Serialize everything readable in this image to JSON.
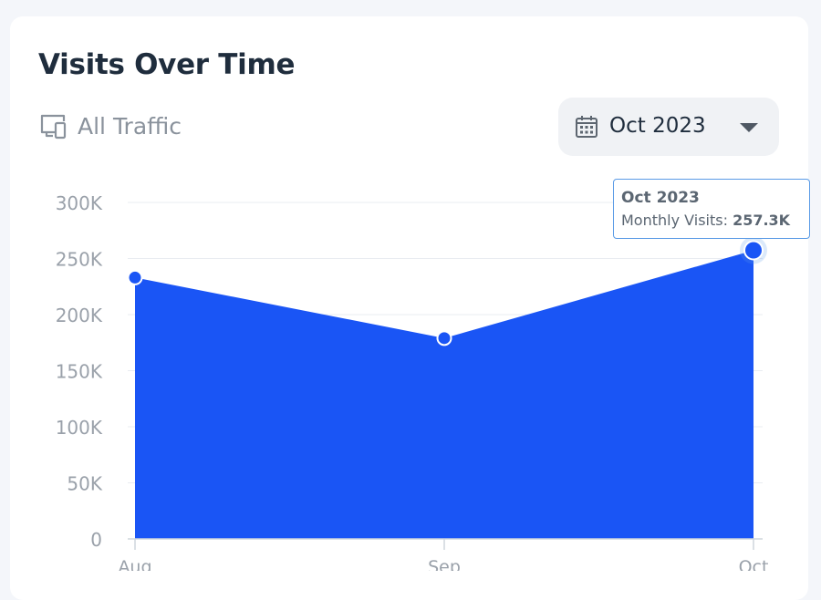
{
  "card": {
    "title": "Visits Over Time",
    "traffic_filter": {
      "label": "All Traffic",
      "icon": "devices-icon"
    },
    "date_select": {
      "value": "Oct 2023",
      "icon": "calendar-icon",
      "caret_icon": "caret-down-icon"
    }
  },
  "tooltip": {
    "title": "Oct 2023",
    "label": "Monthly Visits:",
    "value": "257.3K"
  },
  "colors": {
    "area": "#1a55f5",
    "grid": "#e9ecf1",
    "axis_text": "#9aa1aa",
    "tooltip_border": "#5a9be6"
  },
  "chart_data": {
    "type": "area",
    "categories": [
      "Aug",
      "Sep",
      "Oct"
    ],
    "series": [
      {
        "values": [
          233000,
          179000,
          257300
        ]
      }
    ],
    "y_ticks": [
      "0",
      "50K",
      "100K",
      "150K",
      "200K",
      "250K",
      "300K"
    ],
    "y_tick_values": [
      0,
      50000,
      100000,
      150000,
      200000,
      250000,
      300000
    ],
    "ylim": [
      0,
      300000
    ],
    "grid": true,
    "highlighted_point": "Oct",
    "title": "",
    "xlabel": "",
    "ylabel": ""
  }
}
